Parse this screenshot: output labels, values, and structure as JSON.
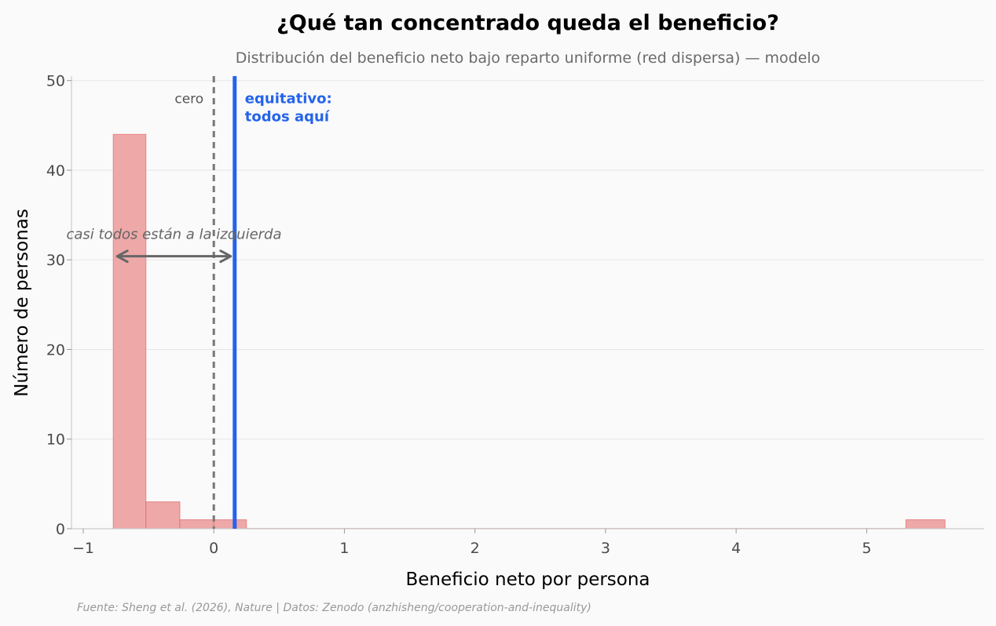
{
  "chart_data": {
    "type": "bar",
    "title": "¿Qué tan concentrado queda el beneficio?",
    "subtitle": "Distribución del beneficio neto bajo reparto uniforme (red dispersa) — modelo",
    "xlabel": "Beneficio neto por persona",
    "ylabel": "Número de personas",
    "xlim": [
      -1.09,
      5.9
    ],
    "ylim": [
      0,
      50.5
    ],
    "x_ticks": [
      -1,
      0,
      1,
      2,
      3,
      4,
      5
    ],
    "y_ticks": [
      0,
      10,
      20,
      30,
      40,
      50
    ],
    "grid": "horizontal",
    "bins": [
      {
        "x0": -0.77,
        "x1": -0.52,
        "count": 44
      },
      {
        "x0": -0.52,
        "x1": -0.26,
        "count": 3
      },
      {
        "x0": -0.26,
        "x1": 0.0,
        "count": 1
      },
      {
        "x0": 0.0,
        "x1": 0.25,
        "count": 1
      },
      {
        "x0": 0.25,
        "x1": 0.5,
        "count": 0
      },
      {
        "x0": 0.5,
        "x1": 0.75,
        "count": 0
      },
      {
        "x0": 0.75,
        "x1": 1.0,
        "count": 0
      },
      {
        "x0": 1.0,
        "x1": 1.26,
        "count": 0
      },
      {
        "x0": 1.26,
        "x1": 1.51,
        "count": 0
      },
      {
        "x0": 1.51,
        "x1": 1.76,
        "count": 0
      },
      {
        "x0": 1.76,
        "x1": 2.01,
        "count": 0
      },
      {
        "x0": 2.01,
        "x1": 2.27,
        "count": 0
      },
      {
        "x0": 2.27,
        "x1": 2.52,
        "count": 0
      },
      {
        "x0": 2.52,
        "x1": 2.77,
        "count": 0
      },
      {
        "x0": 2.77,
        "x1": 3.02,
        "count": 0
      },
      {
        "x0": 3.02,
        "x1": 3.28,
        "count": 0
      },
      {
        "x0": 3.28,
        "x1": 3.53,
        "count": 0
      },
      {
        "x0": 3.53,
        "x1": 3.78,
        "count": 0
      },
      {
        "x0": 3.78,
        "x1": 4.03,
        "count": 0
      },
      {
        "x0": 4.03,
        "x1": 4.29,
        "count": 0
      },
      {
        "x0": 4.29,
        "x1": 4.54,
        "count": 0
      },
      {
        "x0": 4.54,
        "x1": 4.79,
        "count": 0
      },
      {
        "x0": 4.79,
        "x1": 5.04,
        "count": 0
      },
      {
        "x0": 5.04,
        "x1": 5.3,
        "count": 0
      },
      {
        "x0": 5.3,
        "x1": 5.6,
        "count": 1
      }
    ],
    "zero_line": {
      "x": 0,
      "label": "cero"
    },
    "equitable_line": {
      "x": 0.16,
      "label_line1": "equitativo:",
      "label_line2": "todos aquí"
    },
    "annotation": {
      "text": "casi todos están a la izquierda",
      "x_from": 0.13,
      "x_to": -0.74,
      "y": 30.4
    },
    "source": "Fuente: Sheng et al. (2026), Nature | Datos: Zenodo (anzhisheng/cooperation-and-inequality)",
    "colors": {
      "bar_fill": "#eea8a8",
      "bar_stroke": "#e06666",
      "equitable": "#2563eb",
      "zero": "#777777",
      "annotation": "#666666"
    }
  }
}
